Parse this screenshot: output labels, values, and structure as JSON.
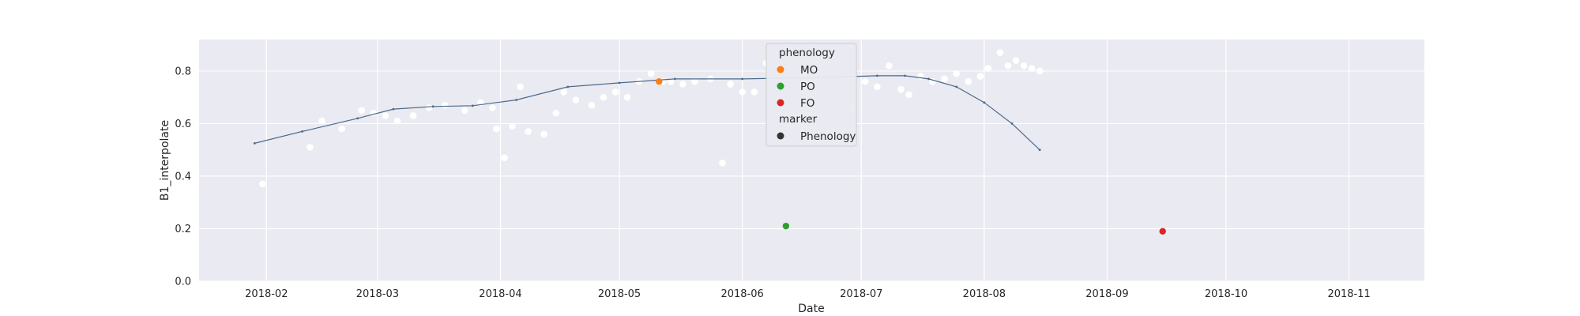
{
  "chart_data": {
    "type": "scatter",
    "title": "",
    "xlabel": "Date",
    "ylabel": "B1_interpolate",
    "xlim": [
      "2018-01-15",
      "2018-11-20"
    ],
    "ylim": [
      0.0,
      0.92
    ],
    "x_ticks": [
      "2018-02",
      "2018-03",
      "2018-04",
      "2018-05",
      "2018-06",
      "2018-07",
      "2018-08",
      "2018-09",
      "2018-10",
      "2018-11"
    ],
    "y_ticks": [
      "0.0",
      "0.2",
      "0.4",
      "0.6",
      "0.8"
    ],
    "grid": true,
    "background_color": "#eaeaf2",
    "legend": {
      "placement": "upper-center",
      "hue_title": "phenology",
      "hue_entries": [
        {
          "label": "MO",
          "color": "#ff7f0e"
        },
        {
          "label": "PO",
          "color": "#2ca02c"
        },
        {
          "label": "FO",
          "color": "#d62728"
        }
      ],
      "marker_title": "marker",
      "marker_entries": [
        {
          "label": "Phenology",
          "color": "#333333"
        }
      ]
    },
    "raw_observations": {
      "color": "#ffffff",
      "points": [
        [
          "2018-01-31",
          0.37
        ],
        [
          "2018-02-12",
          0.51
        ],
        [
          "2018-02-15",
          0.61
        ],
        [
          "2018-02-20",
          0.58
        ],
        [
          "2018-02-25",
          0.65
        ],
        [
          "2018-02-28",
          0.64
        ],
        [
          "2018-03-03",
          0.63
        ],
        [
          "2018-03-06",
          0.61
        ],
        [
          "2018-03-10",
          0.63
        ],
        [
          "2018-03-14",
          0.66
        ],
        [
          "2018-03-18",
          0.67
        ],
        [
          "2018-03-23",
          0.65
        ],
        [
          "2018-03-27",
          0.68
        ],
        [
          "2018-03-30",
          0.66
        ],
        [
          "2018-03-31",
          0.58
        ],
        [
          "2018-04-02",
          0.47
        ],
        [
          "2018-04-04",
          0.59
        ],
        [
          "2018-04-06",
          0.74
        ],
        [
          "2018-04-08",
          0.57
        ],
        [
          "2018-04-12",
          0.56
        ],
        [
          "2018-04-15",
          0.64
        ],
        [
          "2018-04-17",
          0.72
        ],
        [
          "2018-04-20",
          0.69
        ],
        [
          "2018-04-24",
          0.67
        ],
        [
          "2018-04-27",
          0.7
        ],
        [
          "2018-04-30",
          0.72
        ],
        [
          "2018-05-03",
          0.7
        ],
        [
          "2018-05-06",
          0.76
        ],
        [
          "2018-05-09",
          0.79
        ],
        [
          "2018-05-12",
          0.76
        ],
        [
          "2018-05-14",
          0.76
        ],
        [
          "2018-05-17",
          0.75
        ],
        [
          "2018-05-20",
          0.76
        ],
        [
          "2018-05-24",
          0.77
        ],
        [
          "2018-05-27",
          0.45
        ],
        [
          "2018-05-29",
          0.75
        ],
        [
          "2018-06-01",
          0.72
        ],
        [
          "2018-06-04",
          0.72
        ],
        [
          "2018-06-07",
          0.83
        ],
        [
          "2018-06-09",
          0.7
        ],
        [
          "2018-06-11",
          0.81
        ],
        [
          "2018-06-14",
          0.77
        ],
        [
          "2018-06-17",
          0.79
        ],
        [
          "2018-06-20",
          0.81
        ],
        [
          "2018-06-23",
          0.8
        ],
        [
          "2018-06-26",
          0.77
        ],
        [
          "2018-06-29",
          0.67
        ],
        [
          "2018-07-02",
          0.76
        ],
        [
          "2018-07-05",
          0.74
        ],
        [
          "2018-07-08",
          0.82
        ],
        [
          "2018-07-11",
          0.73
        ],
        [
          "2018-07-13",
          0.71
        ],
        [
          "2018-07-16",
          0.78
        ],
        [
          "2018-07-19",
          0.76
        ],
        [
          "2018-07-22",
          0.77
        ],
        [
          "2018-07-25",
          0.79
        ],
        [
          "2018-07-28",
          0.76
        ],
        [
          "2018-07-31",
          0.78
        ],
        [
          "2018-08-02",
          0.81
        ],
        [
          "2018-08-05",
          0.87
        ],
        [
          "2018-08-07",
          0.82
        ],
        [
          "2018-08-09",
          0.84
        ],
        [
          "2018-08-11",
          0.82
        ],
        [
          "2018-08-13",
          0.81
        ],
        [
          "2018-08-15",
          0.8
        ]
      ]
    },
    "series": [
      {
        "kind": "interpolated-curve",
        "color": "#4c6a8a",
        "points": [
          [
            "2018-01-29",
            0.525
          ],
          [
            "2018-02-10",
            0.57
          ],
          [
            "2018-02-24",
            0.62
          ],
          [
            "2018-03-05",
            0.655
          ],
          [
            "2018-03-15",
            0.665
          ],
          [
            "2018-03-25",
            0.668
          ],
          [
            "2018-04-05",
            0.69
          ],
          [
            "2018-04-18",
            0.74
          ],
          [
            "2018-05-01",
            0.755
          ],
          [
            "2018-05-15",
            0.77
          ],
          [
            "2018-06-01",
            0.77
          ],
          [
            "2018-06-20",
            0.775
          ],
          [
            "2018-07-05",
            0.782
          ],
          [
            "2018-07-12",
            0.782
          ],
          [
            "2018-07-18",
            0.77
          ],
          [
            "2018-07-25",
            0.74
          ],
          [
            "2018-08-01",
            0.68
          ],
          [
            "2018-08-08",
            0.6
          ],
          [
            "2018-08-15",
            0.5
          ]
        ]
      }
    ],
    "phenology_points": [
      {
        "label": "MO",
        "x": "2018-05-11",
        "y": 0.76,
        "color": "#ff7f0e"
      },
      {
        "label": "PO",
        "x": "2018-06-12",
        "y": 0.21,
        "color": "#2ca02c"
      },
      {
        "label": "FO",
        "x": "2018-09-15",
        "y": 0.19,
        "color": "#d62728"
      }
    ]
  }
}
